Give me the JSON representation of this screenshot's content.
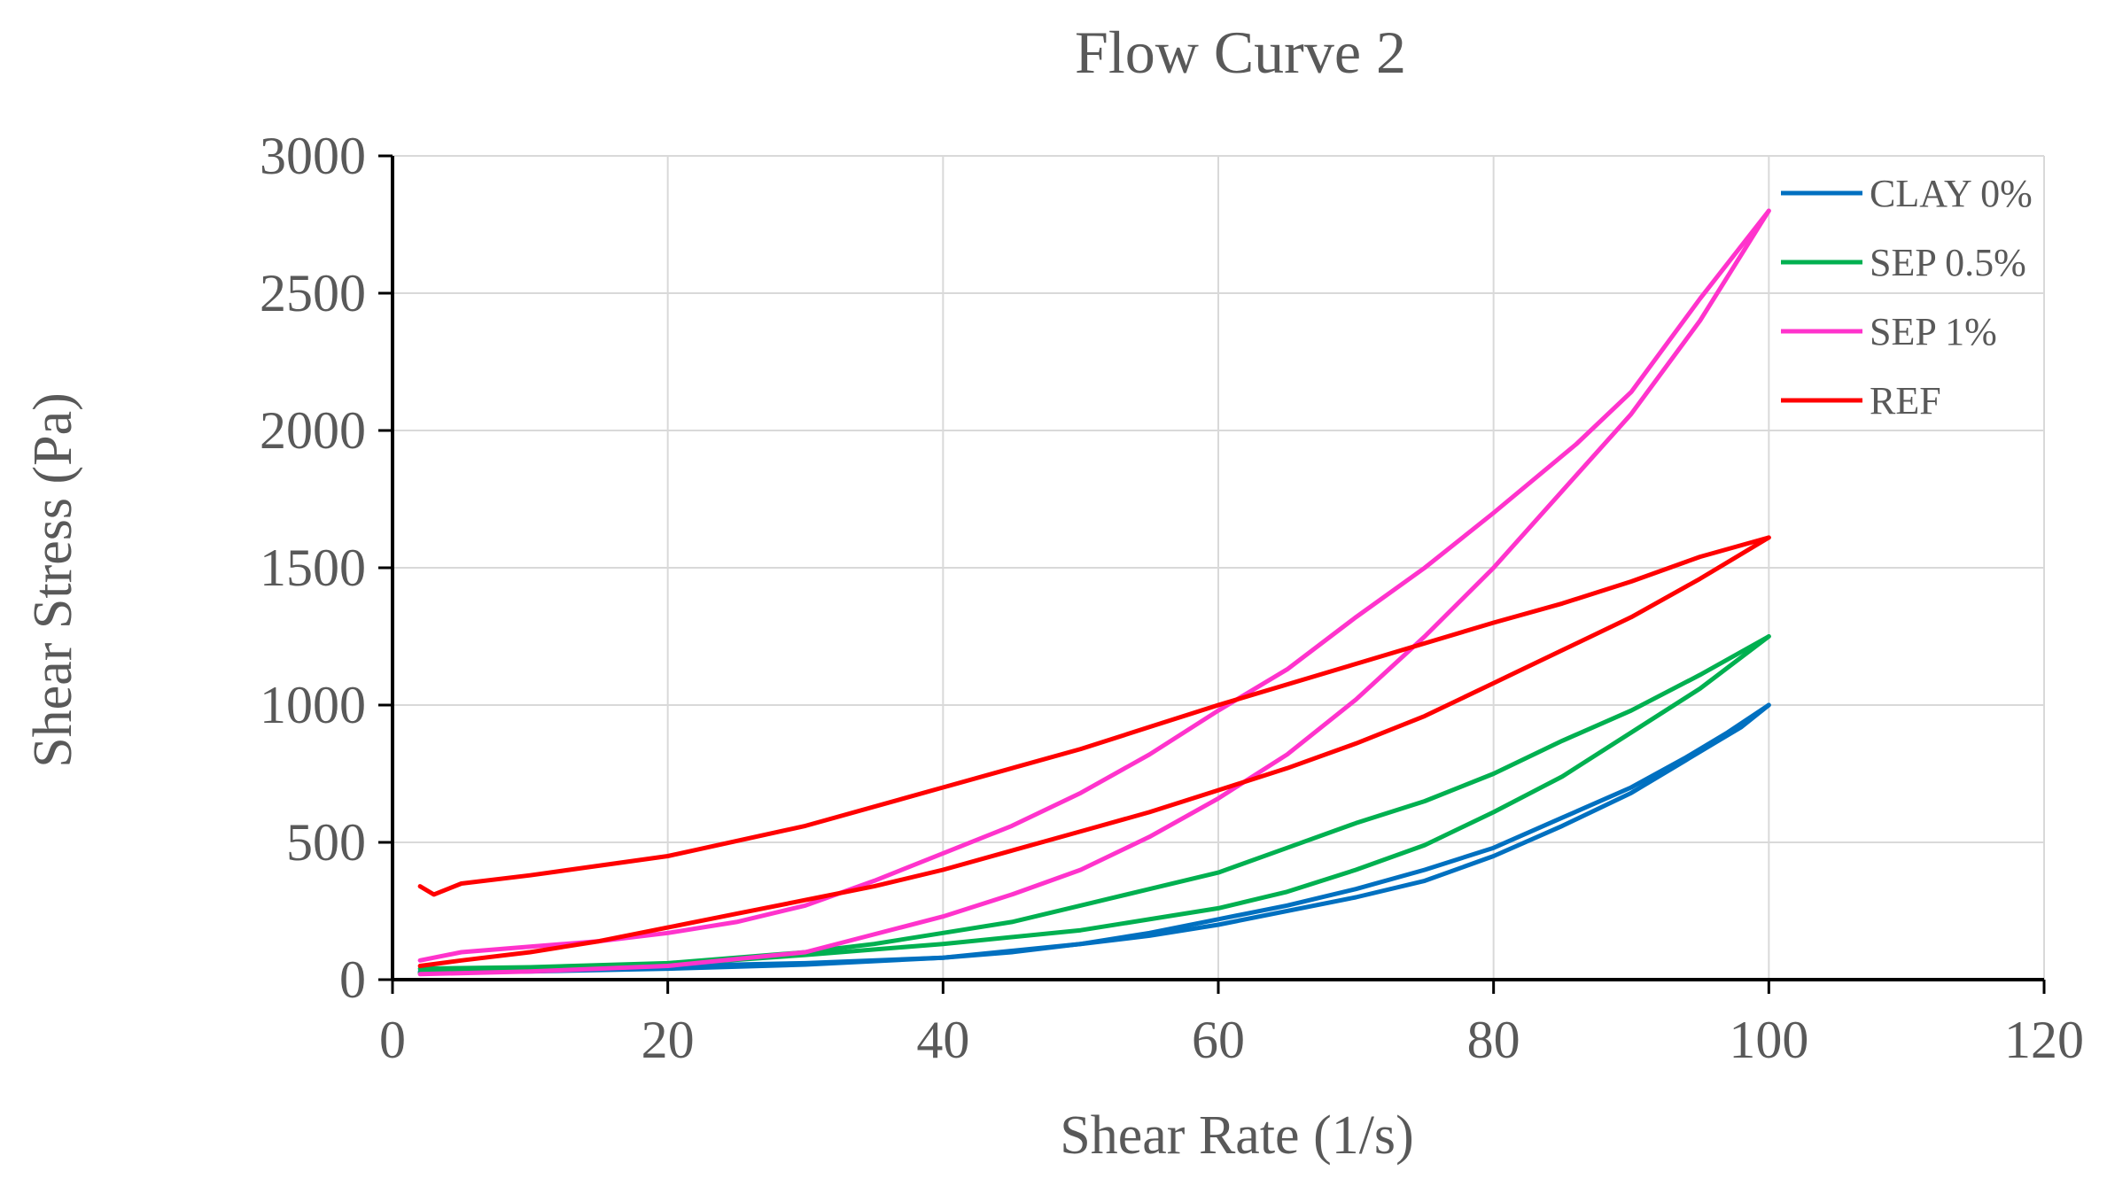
{
  "chart_data": {
    "type": "line",
    "title": "Flow Curve 2",
    "xlabel": "Shear Rate (1/s)",
    "ylabel": "Shear Stress (Pa)",
    "xlim": [
      0,
      120
    ],
    "ylim": [
      0,
      3000
    ],
    "xticks": [
      0,
      20,
      40,
      60,
      80,
      100,
      120
    ],
    "yticks": [
      0,
      500,
      1000,
      1500,
      2000,
      2500,
      3000
    ],
    "grid": true,
    "legend_position": "top-right",
    "series": [
      {
        "name": "CLAY 0%",
        "color": "#0070C0",
        "up": [
          [
            2,
            30
          ],
          [
            10,
            40
          ],
          [
            20,
            50
          ],
          [
            30,
            60
          ],
          [
            40,
            80
          ],
          [
            50,
            130
          ],
          [
            55,
            160
          ],
          [
            60,
            200
          ],
          [
            70,
            300
          ],
          [
            75,
            360
          ],
          [
            80,
            450
          ],
          [
            85,
            560
          ],
          [
            90,
            680
          ],
          [
            93,
            770
          ],
          [
            96,
            860
          ],
          [
            98,
            920
          ],
          [
            100,
            1000
          ]
        ],
        "down": [
          [
            100,
            1000
          ],
          [
            97,
            900
          ],
          [
            94,
            810
          ],
          [
            90,
            700
          ],
          [
            85,
            590
          ],
          [
            80,
            480
          ],
          [
            75,
            400
          ],
          [
            70,
            330
          ],
          [
            65,
            270
          ],
          [
            60,
            220
          ],
          [
            55,
            170
          ],
          [
            50,
            130
          ],
          [
            45,
            100
          ],
          [
            40,
            80
          ],
          [
            30,
            55
          ],
          [
            20,
            40
          ],
          [
            10,
            30
          ],
          [
            2,
            25
          ]
        ]
      },
      {
        "name": "SEP 0.5%",
        "color": "#00B050",
        "up": [
          [
            2,
            25
          ],
          [
            10,
            35
          ],
          [
            20,
            55
          ],
          [
            30,
            90
          ],
          [
            40,
            130
          ],
          [
            50,
            180
          ],
          [
            60,
            260
          ],
          [
            65,
            320
          ],
          [
            70,
            400
          ],
          [
            75,
            490
          ],
          [
            80,
            610
          ],
          [
            85,
            740
          ],
          [
            90,
            900
          ],
          [
            95,
            1060
          ],
          [
            100,
            1250
          ]
        ],
        "down": [
          [
            100,
            1250
          ],
          [
            95,
            1110
          ],
          [
            90,
            980
          ],
          [
            85,
            870
          ],
          [
            80,
            750
          ],
          [
            75,
            650
          ],
          [
            70,
            570
          ],
          [
            65,
            480
          ],
          [
            60,
            390
          ],
          [
            55,
            330
          ],
          [
            50,
            270
          ],
          [
            45,
            210
          ],
          [
            40,
            170
          ],
          [
            35,
            130
          ],
          [
            30,
            100
          ],
          [
            20,
            60
          ],
          [
            10,
            45
          ],
          [
            2,
            40
          ]
        ]
      },
      {
        "name": "SEP 1%",
        "color": "#FF33CC",
        "up": [
          [
            2,
            20
          ],
          [
            10,
            30
          ],
          [
            20,
            50
          ],
          [
            30,
            100
          ],
          [
            40,
            230
          ],
          [
            45,
            310
          ],
          [
            50,
            400
          ],
          [
            55,
            520
          ],
          [
            60,
            660
          ],
          [
            65,
            820
          ],
          [
            70,
            1020
          ],
          [
            75,
            1250
          ],
          [
            80,
            1500
          ],
          [
            85,
            1780
          ],
          [
            90,
            2060
          ],
          [
            95,
            2400
          ],
          [
            100,
            2800
          ]
        ],
        "down": [
          [
            100,
            2800
          ],
          [
            95,
            2480
          ],
          [
            90,
            2140
          ],
          [
            86,
            1950
          ],
          [
            80,
            1700
          ],
          [
            75,
            1500
          ],
          [
            70,
            1320
          ],
          [
            65,
            1130
          ],
          [
            60,
            980
          ],
          [
            55,
            820
          ],
          [
            50,
            680
          ],
          [
            45,
            560
          ],
          [
            40,
            460
          ],
          [
            35,
            360
          ],
          [
            30,
            270
          ],
          [
            25,
            210
          ],
          [
            20,
            170
          ],
          [
            15,
            140
          ],
          [
            10,
            120
          ],
          [
            5,
            100
          ],
          [
            2,
            70
          ]
        ]
      },
      {
        "name": "REF",
        "color": "#FF0000",
        "up": [
          [
            2,
            340
          ],
          [
            3,
            310
          ],
          [
            5,
            350
          ],
          [
            10,
            380
          ],
          [
            20,
            450
          ],
          [
            30,
            560
          ],
          [
            40,
            700
          ],
          [
            50,
            840
          ],
          [
            55,
            920
          ],
          [
            60,
            1000
          ],
          [
            70,
            1150
          ],
          [
            80,
            1300
          ],
          [
            85,
            1370
          ],
          [
            90,
            1450
          ],
          [
            95,
            1540
          ],
          [
            100,
            1610
          ]
        ],
        "down": [
          [
            100,
            1610
          ],
          [
            95,
            1460
          ],
          [
            90,
            1320
          ],
          [
            85,
            1200
          ],
          [
            80,
            1080
          ],
          [
            75,
            960
          ],
          [
            70,
            860
          ],
          [
            65,
            770
          ],
          [
            60,
            690
          ],
          [
            55,
            610
          ],
          [
            50,
            540
          ],
          [
            45,
            470
          ],
          [
            40,
            400
          ],
          [
            35,
            340
          ],
          [
            30,
            290
          ],
          [
            25,
            240
          ],
          [
            20,
            190
          ],
          [
            15,
            140
          ],
          [
            10,
            100
          ],
          [
            5,
            70
          ],
          [
            2,
            50
          ]
        ]
      }
    ]
  }
}
